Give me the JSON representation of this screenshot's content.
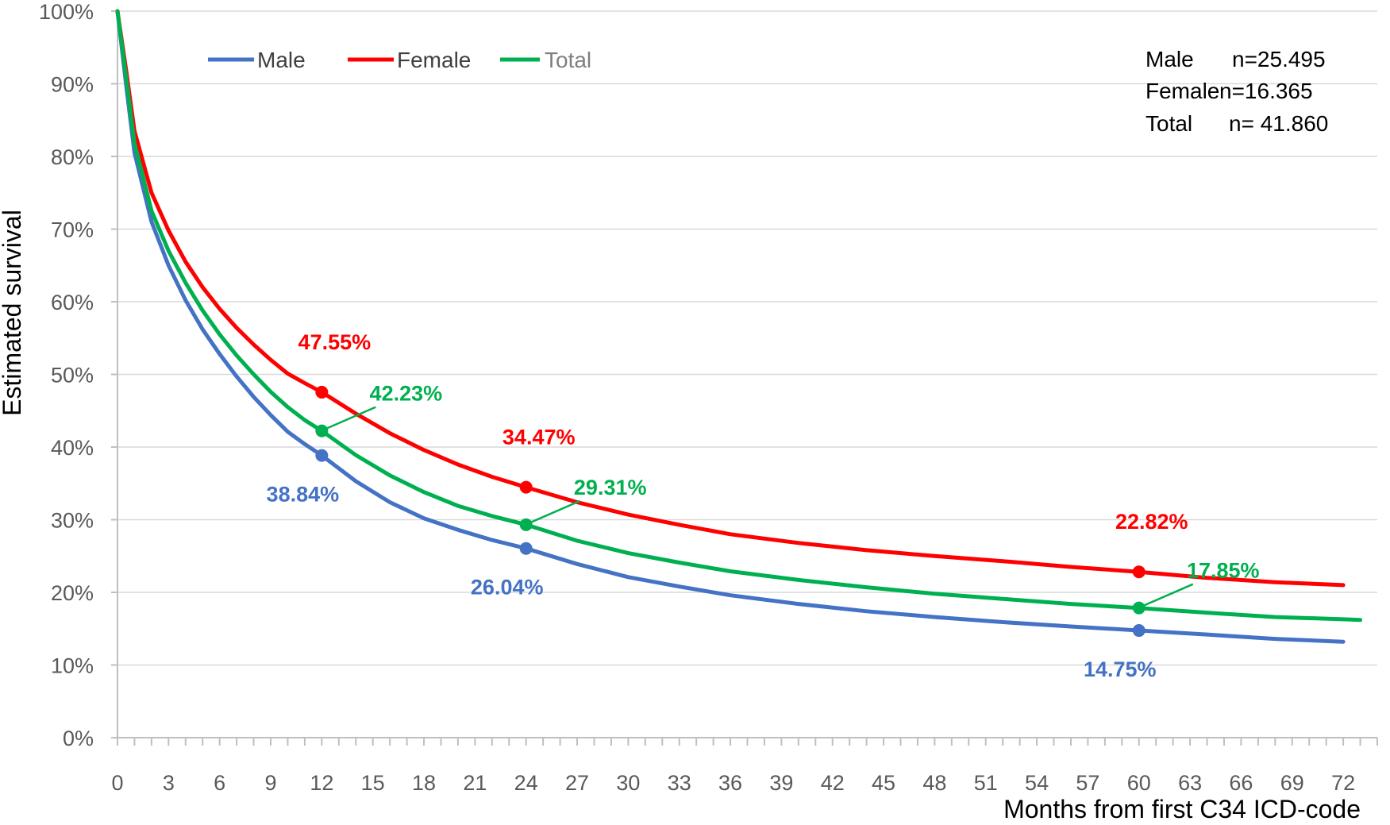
{
  "chart_data": {
    "type": "line",
    "title": "",
    "xlabel": "Months from first C34 ICD-code",
    "ylabel": "Estimated survival",
    "xlim": [
      0,
      74
    ],
    "ylim": [
      0,
      100
    ],
    "x_ticks": [
      0,
      3,
      6,
      9,
      12,
      15,
      18,
      21,
      24,
      27,
      30,
      33,
      36,
      39,
      42,
      45,
      48,
      51,
      54,
      57,
      60,
      63,
      66,
      69,
      72
    ],
    "y_ticks": [
      "0%",
      "10%",
      "20%",
      "30%",
      "40%",
      "50%",
      "60%",
      "70%",
      "80%",
      "90%",
      "100%"
    ],
    "grid": "horizontal",
    "legend_position": "top-left",
    "series": [
      {
        "name": "Male",
        "color": "#4472C4",
        "x": [
          0,
          0.5,
          1,
          2,
          3,
          4,
          5,
          6,
          7,
          8,
          9,
          10,
          11,
          12,
          14,
          16,
          18,
          20,
          22,
          24,
          27,
          30,
          33,
          36,
          40,
          44,
          48,
          52,
          56,
          60,
          64,
          68,
          72
        ],
        "y": [
          100,
          90,
          80.5,
          71,
          65,
          60.2,
          56.2,
          52.8,
          49.7,
          46.9,
          44.4,
          42.1,
          40.4,
          38.84,
          35.3,
          32.4,
          30.2,
          28.6,
          27.2,
          26.04,
          23.9,
          22.1,
          20.8,
          19.6,
          18.4,
          17.4,
          16.6,
          15.9,
          15.3,
          14.75,
          14.2,
          13.6,
          13.2
        ]
      },
      {
        "name": "Female",
        "color": "#FF0000",
        "x": [
          0,
          0.5,
          1,
          2,
          3,
          4,
          5,
          6,
          7,
          8,
          9,
          10,
          11,
          12,
          14,
          16,
          18,
          20,
          22,
          24,
          27,
          30,
          33,
          36,
          40,
          44,
          48,
          52,
          56,
          60,
          64,
          68,
          72
        ],
        "y": [
          100,
          92,
          83.5,
          75,
          69.8,
          65.5,
          62,
          59,
          56.4,
          54.1,
          52,
          50.1,
          48.8,
          47.55,
          44.6,
          41.9,
          39.6,
          37.6,
          35.9,
          34.47,
          32.4,
          30.7,
          29.3,
          28,
          26.8,
          25.8,
          25,
          24.3,
          23.5,
          22.82,
          22,
          21.4,
          21
        ]
      },
      {
        "name": "Total",
        "color": "#00B050",
        "x": [
          0,
          0.5,
          1,
          2,
          3,
          4,
          5,
          6,
          7,
          8,
          9,
          10,
          11,
          12,
          14,
          16,
          18,
          20,
          22,
          24,
          27,
          30,
          33,
          36,
          40,
          44,
          48,
          52,
          56,
          60,
          64,
          68,
          72,
          73
        ],
        "y": [
          100,
          91,
          81.8,
          72.5,
          67,
          62.6,
          58.8,
          55.5,
          52.6,
          50,
          47.6,
          45.5,
          43.7,
          42.23,
          38.9,
          36.1,
          33.8,
          31.9,
          30.5,
          29.31,
          27.1,
          25.4,
          24.1,
          22.9,
          21.7,
          20.7,
          19.8,
          19.1,
          18.4,
          17.85,
          17.2,
          16.6,
          16.3,
          16.2
        ]
      }
    ],
    "point_labels": [
      {
        "series": "Male",
        "x": 12,
        "y": 38.84,
        "text": "38.84%"
      },
      {
        "series": "Female",
        "x": 12,
        "y": 47.55,
        "text": "47.55%"
      },
      {
        "series": "Total",
        "x": 12,
        "y": 42.23,
        "text": "42.23%"
      },
      {
        "series": "Male",
        "x": 24,
        "y": 26.04,
        "text": "26.04%"
      },
      {
        "series": "Female",
        "x": 24,
        "y": 34.47,
        "text": "34.47%"
      },
      {
        "series": "Total",
        "x": 24,
        "y": 29.31,
        "text": "29.31%"
      },
      {
        "series": "Male",
        "x": 60,
        "y": 14.75,
        "text": "14.75%"
      },
      {
        "series": "Female",
        "x": 60,
        "y": 22.82,
        "text": "22.82%"
      },
      {
        "series": "Total",
        "x": 60,
        "y": 17.85,
        "text": "17.85%"
      }
    ],
    "info_box": [
      {
        "label": "Male",
        "value": "n=25.495"
      },
      {
        "label": "Female",
        "value": "n=16.365"
      },
      {
        "label": "Total",
        "value": "n= 41.860"
      }
    ]
  }
}
